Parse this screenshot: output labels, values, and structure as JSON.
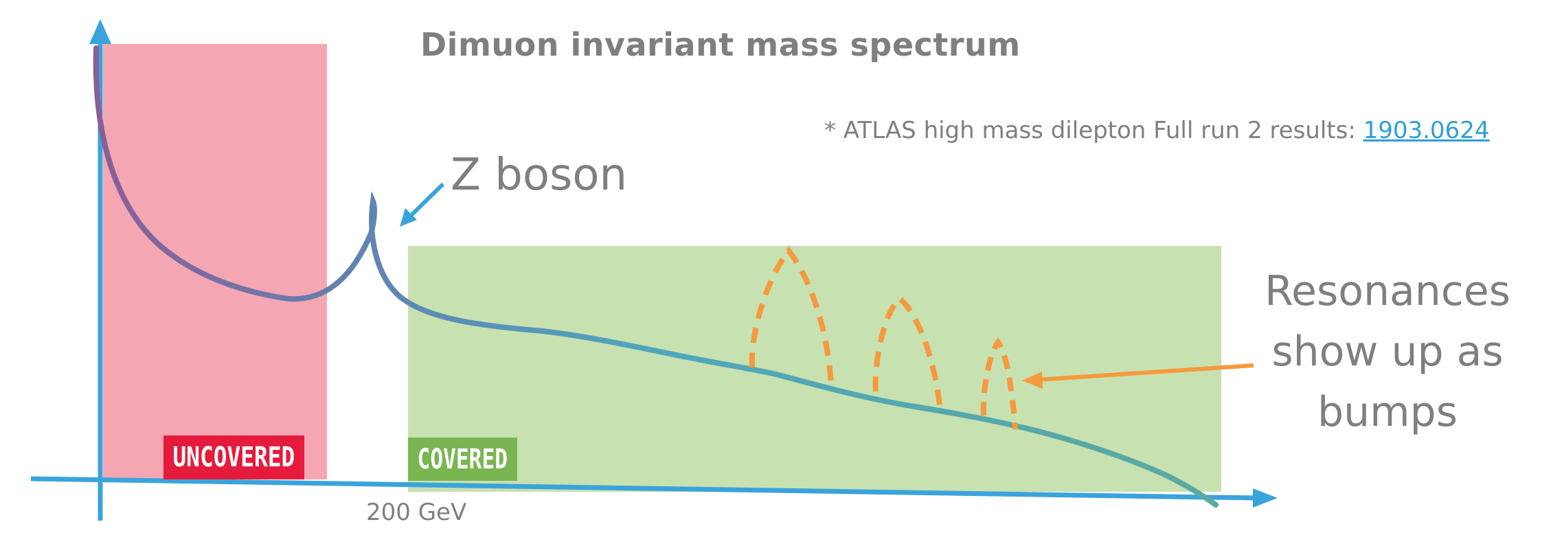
{
  "title": "Dimuon invariant mass spectrum",
  "reference": {
    "prefix": "* ATLAS high mass dilepton Full run 2 results: ",
    "link_text": "1903.0624"
  },
  "annotations": {
    "z_boson": "Z boson",
    "resonances": [
      "Resonances",
      "show up as",
      "bumps"
    ]
  },
  "regions": {
    "uncovered_label": "UNCOVERED",
    "covered_label": "COVERED"
  },
  "axis": {
    "x_tick_label": "200 GeV"
  },
  "colors": {
    "axis": "#3aa3dc",
    "uncovered_region": "#f4a7b3",
    "covered_region": "#c8e1b0",
    "uncovered_badge": "#e41b3b",
    "covered_badge": "#79b551",
    "curve_start": "#7a6a9c",
    "curve_end": "#5aaa9e",
    "bumps": "#f59a3e",
    "text": "#7f7f7f",
    "link": "#2f9ed8"
  }
}
